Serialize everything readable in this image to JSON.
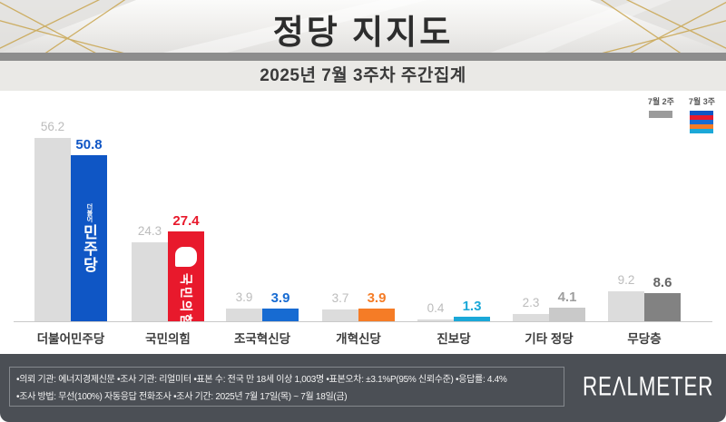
{
  "chart_data": {
    "type": "bar",
    "title": "정당 지지도",
    "subtitle": "2025년 7월 3주차 주간집계",
    "categories": [
      "더불어민주당",
      "국민의힘",
      "조국혁신당",
      "개혁신당",
      "진보당",
      "기타 정당",
      "무당층"
    ],
    "series": [
      {
        "name": "7월 2주",
        "values": [
          56.2,
          24.3,
          3.9,
          3.7,
          0.4,
          2.3,
          9.2
        ]
      },
      {
        "name": "7월 3주",
        "values": [
          50.8,
          27.4,
          3.9,
          3.9,
          1.3,
          4.1,
          8.6
        ]
      }
    ],
    "unit": "%",
    "ylim": [
      0,
      60
    ],
    "grid": false,
    "legend_position": "top-right",
    "prev_bar_color": "#dcdcdc",
    "prev_value_color": "#bcbcbc",
    "curr_bar_colors": [
      "#0f56c5",
      "#e8192c",
      "#176bd2",
      "#f57c26",
      "#1ba8d8",
      "#c9c9c9",
      "#828282"
    ],
    "curr_value_colors": [
      "#0f56c5",
      "#e8192c",
      "#176bd2",
      "#f57c26",
      "#1ba8d8",
      "#9e9e9e",
      "#666666"
    ],
    "legend_prev_color": "#9b9b9b",
    "legend_curr_colors": [
      "#0f56c5",
      "#e8192c",
      "#176bd2",
      "#f57c26",
      "#1ba8d8"
    ],
    "bar_logos": {
      "dem_small": "더불어",
      "dem_main": "민주당",
      "ppp_text": "국민의힘"
    }
  },
  "footer": {
    "line1": "•의뢰 기관: 에너지경제신문  •조사 기관: 리얼미터 •표본 수: 전국 만 18세 이상 1,003명 •표본오차: ±3.1%P(95% 신뢰수준) •응답률: 4.4%",
    "line2": "•조사 방법: 무선(100%) 자동응답 전화조사 •조사 기간: 2025년 7월 17일(목) ~ 7월 18일(금)",
    "brand": "REΛLMETER"
  }
}
